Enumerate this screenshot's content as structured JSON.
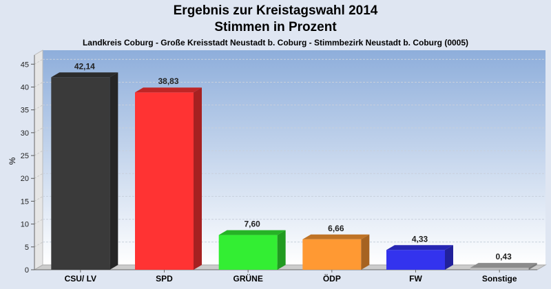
{
  "title_line1": "Ergebnis zur Kreistagswahl 2014",
  "title_line2": "Stimmen in Prozent",
  "subtitle": "Landkreis Coburg - Große Kreisstadt Neustadt b. Coburg - Stimmbezirk Neustadt b. Coburg (0005)",
  "chart_data": {
    "type": "bar",
    "title": "Ergebnis zur Kreistagswahl 2014 Stimmen in Prozent",
    "subtitle": "Landkreis Coburg - Große Kreisstadt Neustadt b. Coburg - Stimmbezirk Neustadt b. Coburg (0005)",
    "ylabel": "%",
    "xlabel": "",
    "ylim": [
      0,
      47
    ],
    "yticks": [
      0,
      5,
      10,
      15,
      20,
      25,
      30,
      35,
      40,
      45
    ],
    "grid": true,
    "categories": [
      "CSU/ LV",
      "SPD",
      "GRÜNE",
      "ÖDP",
      "FW",
      "Sonstige"
    ],
    "values": [
      42.14,
      38.83,
      7.6,
      6.66,
      4.33,
      0.43
    ],
    "value_labels": [
      "42,14",
      "38,83",
      "7,60",
      "6,66",
      "4,33",
      "0,43"
    ],
    "colors": [
      "#3a3a3a",
      "#ff3333",
      "#33ee33",
      "#ff9933",
      "#3333ee",
      "#bbbbbb"
    ]
  }
}
